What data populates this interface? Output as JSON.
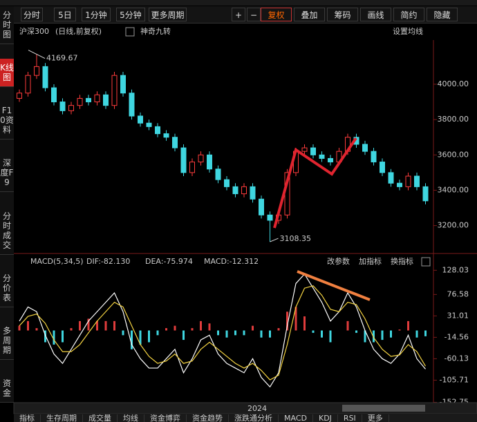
{
  "toolbar": {
    "periods": [
      "分时",
      "5日",
      "1分钟",
      "5分钟",
      "更多周期"
    ],
    "zoom": [
      "+",
      "−"
    ],
    "tools": [
      "复权",
      "叠加",
      "筹码",
      "画线",
      "简约",
      "隐藏"
    ]
  },
  "sidebar": [
    "分时图",
    "K线图",
    "F10资料",
    "深度F9",
    "分时成交",
    "分价表",
    "多周期",
    "资金"
  ],
  "price_chart": {
    "title": "沪深300",
    "subtitle": "(日线,前复权)",
    "indicator": "神奇九转",
    "settings": "设置均线",
    "ylim": [
      3050,
      4250
    ],
    "yticks": [
      {
        "value": 4000,
        "label": "4000.00"
      },
      {
        "value": 3800,
        "label": "3800.00"
      },
      {
        "value": 3600,
        "label": "3600.00"
      },
      {
        "value": 3400,
        "label": "3400.00"
      },
      {
        "value": 3200,
        "label": "3200.00"
      }
    ],
    "max_label": "4169.67",
    "min_label": "3108.35",
    "candles": [
      [
        3920,
        3970,
        3900,
        3950
      ],
      [
        3950,
        4070,
        3930,
        4050
      ],
      [
        4050,
        4169.67,
        4030,
        4100
      ],
      [
        4100,
        4120,
        3960,
        3980
      ],
      [
        3980,
        4000,
        3880,
        3900
      ],
      [
        3900,
        3920,
        3830,
        3850
      ],
      [
        3850,
        3900,
        3830,
        3880
      ],
      [
        3880,
        3940,
        3860,
        3920
      ],
      [
        3920,
        3940,
        3880,
        3900
      ],
      [
        3900,
        3960,
        3880,
        3940
      ],
      [
        3940,
        3960,
        3860,
        3880
      ],
      [
        3880,
        4070,
        3860,
        4050
      ],
      [
        4050,
        4070,
        3930,
        3950
      ],
      [
        3950,
        3970,
        3800,
        3820
      ],
      [
        3820,
        3840,
        3760,
        3780
      ],
      [
        3780,
        3800,
        3740,
        3760
      ],
      [
        3760,
        3780,
        3700,
        3720
      ],
      [
        3720,
        3740,
        3680,
        3700
      ],
      [
        3700,
        3720,
        3620,
        3640
      ],
      [
        3640,
        3660,
        3480,
        3500
      ],
      [
        3500,
        3580,
        3480,
        3560
      ],
      [
        3560,
        3620,
        3540,
        3600
      ],
      [
        3600,
        3620,
        3500,
        3520
      ],
      [
        3520,
        3540,
        3440,
        3460
      ],
      [
        3460,
        3480,
        3400,
        3420
      ],
      [
        3420,
        3440,
        3360,
        3380
      ],
      [
        3380,
        3440,
        3360,
        3420
      ],
      [
        3420,
        3440,
        3330,
        3350
      ],
      [
        3350,
        3370,
        3240,
        3260
      ],
      [
        3260,
        3280,
        3108.35,
        3230
      ],
      [
        3230,
        3280,
        3210,
        3260
      ],
      [
        3260,
        3520,
        3240,
        3500
      ],
      [
        3500,
        3640,
        3480,
        3620
      ],
      [
        3620,
        3660,
        3600,
        3640
      ],
      [
        3640,
        3660,
        3580,
        3600
      ],
      [
        3600,
        3620,
        3560,
        3580
      ],
      [
        3580,
        3600,
        3540,
        3560
      ],
      [
        3560,
        3640,
        3540,
        3620
      ],
      [
        3620,
        3720,
        3600,
        3700
      ],
      [
        3700,
        3720,
        3640,
        3660
      ],
      [
        3660,
        3680,
        3600,
        3620
      ],
      [
        3620,
        3640,
        3540,
        3560
      ],
      [
        3560,
        3580,
        3480,
        3500
      ],
      [
        3500,
        3520,
        3420,
        3440
      ],
      [
        3440,
        3460,
        3400,
        3420
      ],
      [
        3420,
        3500,
        3400,
        3480
      ],
      [
        3480,
        3500,
        3400,
        3420
      ],
      [
        3420,
        3440,
        3320,
        3340
      ]
    ]
  },
  "macd_chart": {
    "title": "MACD(5,34,5)",
    "dif_label": "DIF:-82.130",
    "dea_label": "DEA:-75.974",
    "macd_label": "MACD:-12.312",
    "actions": [
      "改参数",
      "加指标",
      "换指标"
    ],
    "ylim": [
      -155,
      130
    ],
    "yticks": [
      128.03,
      76.58,
      31.01,
      -14.56,
      -60.13,
      -105.71,
      -152.75
    ],
    "dif": [
      20,
      50,
      40,
      -10,
      -50,
      -70,
      -40,
      -10,
      20,
      40,
      60,
      80,
      40,
      -30,
      -60,
      -80,
      -80,
      -60,
      -40,
      -90,
      -60,
      -20,
      -10,
      -50,
      -70,
      -80,
      -90,
      -60,
      -100,
      -120,
      -90,
      10,
      100,
      120,
      90,
      60,
      20,
      40,
      80,
      50,
      0,
      -40,
      -60,
      -70,
      -50,
      -10,
      -60,
      -82.13
    ],
    "dea": [
      10,
      30,
      35,
      15,
      -20,
      -45,
      -45,
      -30,
      -5,
      20,
      40,
      60,
      50,
      10,
      -30,
      -55,
      -70,
      -65,
      -50,
      -70,
      -65,
      -40,
      -25,
      -40,
      -55,
      -70,
      -80,
      -70,
      -85,
      -105,
      -95,
      -30,
      50,
      90,
      95,
      75,
      45,
      40,
      60,
      55,
      25,
      -15,
      -40,
      -55,
      -52,
      -30,
      -45,
      -75.974
    ],
    "macd": [
      10,
      20,
      5,
      -25,
      -30,
      -25,
      5,
      20,
      25,
      20,
      20,
      20,
      -10,
      -40,
      -30,
      -25,
      -10,
      5,
      10,
      -20,
      5,
      20,
      15,
      -10,
      -15,
      -10,
      -10,
      10,
      -15,
      -15,
      5,
      40,
      50,
      30,
      -5,
      -15,
      -25,
      0,
      20,
      -5,
      -25,
      -25,
      -20,
      -15,
      2,
      20,
      -15,
      -12.312
    ]
  },
  "timeline": {
    "label": "2024"
  },
  "bottom_tabs": [
    "指标",
    "生存周期",
    "成交量",
    "均线",
    "资金博弈",
    "资金趋势",
    "涨跌通分析",
    "MACD",
    "KDJ",
    "RSI",
    "更多"
  ]
}
